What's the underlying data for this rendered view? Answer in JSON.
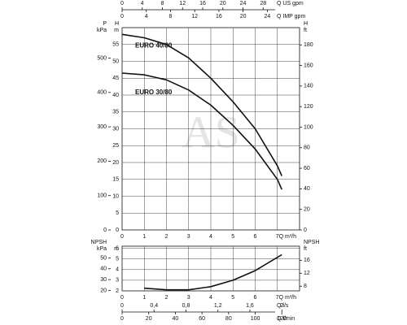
{
  "chart_data": [
    {
      "type": "line",
      "watermark": "AS",
      "xlabel": "Q m³/h",
      "xlim": [
        0,
        8
      ],
      "xticks": [
        0,
        1,
        2,
        3,
        4,
        5,
        6,
        7
      ],
      "extra_x_axes": [
        {
          "label": "Q US gpm",
          "lim": [
            0,
            35.22
          ],
          "ticks": [
            0,
            4,
            8,
            12,
            16,
            20,
            24,
            28
          ]
        },
        {
          "label": "Q IMP gpm",
          "lim": [
            0,
            29.33
          ],
          "ticks": [
            0,
            4,
            8,
            12,
            16,
            20,
            24
          ]
        }
      ],
      "y_axes": [
        {
          "label": "P",
          "unit": "kPa",
          "lim": [
            0,
            588.6
          ],
          "ticks": [
            0,
            100,
            200,
            300,
            400,
            500
          ]
        },
        {
          "label": "H",
          "unit": "m",
          "lim": [
            0,
            60
          ],
          "ticks": [
            0,
            5,
            10,
            15,
            20,
            25,
            30,
            35,
            40,
            45,
            50,
            55
          ]
        },
        {
          "label": "H",
          "unit": "ft",
          "lim": [
            0,
            196.8
          ],
          "ticks": [
            0,
            20,
            40,
            60,
            80,
            100,
            120,
            140,
            160,
            180
          ]
        }
      ],
      "grid": true,
      "color": "#111111",
      "series": [
        {
          "name": "EURO 40/80",
          "x": [
            0,
            1,
            2,
            3,
            4,
            5,
            6,
            7,
            7.2
          ],
          "values": [
            58,
            57,
            55,
            51,
            45,
            38,
            30,
            19,
            16
          ]
        },
        {
          "name": "EURO 30/80",
          "x": [
            0,
            1,
            2,
            3,
            4,
            5,
            6,
            7,
            7.2
          ],
          "values": [
            46.5,
            46,
            44.5,
            41.5,
            37,
            31,
            24,
            15,
            12
          ]
        }
      ]
    },
    {
      "type": "line",
      "xlabel": "Q m³/h",
      "xlim": [
        0,
        8
      ],
      "xticks": [
        0,
        1,
        2,
        3,
        4,
        5,
        6,
        7
      ],
      "extra_x_axes": [
        {
          "label": "Q l/s",
          "lim": [
            0,
            2.222
          ],
          "ticks": [
            0,
            {
              "value": 0.4,
              "label": "0,4"
            },
            {
              "value": 0.8,
              "label": "0,8"
            },
            {
              "value": 1.2,
              "label": "1,2"
            },
            {
              "value": 1.6,
              "label": "1,6"
            },
            2
          ]
        },
        {
          "label": "Q l/min",
          "lim": [
            0,
            133.3
          ],
          "ticks": [
            0,
            20,
            40,
            60,
            80,
            100,
            120
          ]
        }
      ],
      "y_axes": [
        {
          "label": "NPSH",
          "unit": "kPa",
          "lim": [
            19.6,
            60.8
          ],
          "ticks": [
            20,
            30,
            40,
            50
          ]
        },
        {
          "label": "",
          "unit": "m",
          "lim": [
            2,
            6.2
          ],
          "ticks": [
            2,
            3,
            4,
            5,
            6
          ]
        },
        {
          "label": "NPSH",
          "unit": "ft",
          "lim": [
            6.56,
            20.34
          ],
          "ticks": [
            8,
            12,
            16
          ]
        }
      ],
      "grid": true,
      "color": "#111111",
      "series": [
        {
          "name": "NPSH",
          "x": [
            1,
            2,
            3,
            4,
            5,
            6,
            7.2
          ],
          "values": [
            2.25,
            2.1,
            2.1,
            2.4,
            3.0,
            3.9,
            5.4
          ]
        }
      ]
    }
  ]
}
